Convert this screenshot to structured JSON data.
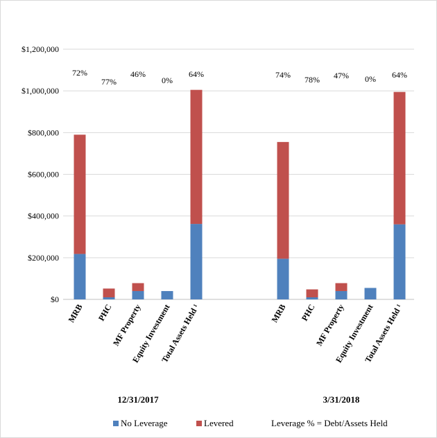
{
  "chart_data": {
    "type": "bar",
    "stacked": true,
    "ylim": [
      0,
      1200000
    ],
    "y_ticks": [
      "$0",
      "$200,000",
      "$400,000",
      "$600,000",
      "$800,000",
      "$1,000,000",
      "$1,200,000"
    ],
    "y_tick_values": [
      0,
      200000,
      400000,
      600000,
      800000,
      1000000,
      1200000
    ],
    "grid": true,
    "categories": [
      "MRB",
      "PHC",
      "MF Property",
      "Equity Investment",
      "Total Assets Held ¹"
    ],
    "groups": [
      {
        "label": "12/31/2017",
        "leverage_labels": [
          "72%",
          "77%",
          "46%",
          "0%",
          "64%"
        ],
        "series": [
          {
            "name": "No Leverage",
            "values": [
              218000,
              10000,
              40000,
              40000,
              362000
            ]
          },
          {
            "name": "Levered",
            "values": [
              572000,
              42000,
              38000,
              0,
              643000
            ]
          }
        ]
      },
      {
        "label": "3/31/2018",
        "leverage_labels": [
          "74%",
          "78%",
          "47%",
          "0%",
          "64%"
        ],
        "series": [
          {
            "name": "No Leverage",
            "values": [
              195000,
              10000,
              40000,
              55000,
              360000
            ]
          },
          {
            "name": "Levered",
            "values": [
              560000,
              38000,
              38000,
              0,
              635000
            ]
          }
        ]
      }
    ],
    "legend": {
      "position": "bottom",
      "items": [
        {
          "label": "No Leverage",
          "color": "#4f81bd"
        },
        {
          "label": "Levered",
          "color": "#c0504d"
        }
      ],
      "note": "Leverage % = Debt/Assets Held"
    }
  }
}
